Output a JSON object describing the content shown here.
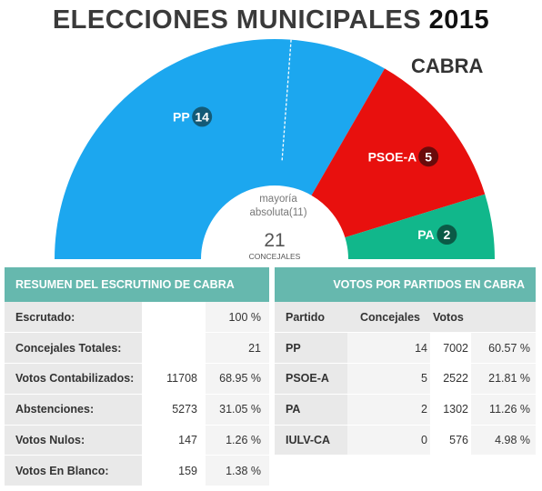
{
  "header": {
    "title": "ELECCIONES MUNICIPALES",
    "year": "2015",
    "municipality": "CABRA"
  },
  "chart_data": {
    "type": "hemicycle",
    "total_seats": 21,
    "total_label": "CONCEJALES",
    "majority_label": "mayoría absoluta(11)",
    "majority_seats": 11,
    "series": [
      {
        "name": "PP",
        "seats": 14,
        "color": "#1ca7ef",
        "badge_color": "#135a77"
      },
      {
        "name": "PSOE-A",
        "seats": 5,
        "color": "#e8100e",
        "badge_color": "#6a0b0b"
      },
      {
        "name": "PA",
        "seats": 2,
        "color": "#11b78b",
        "badge_color": "#0b5a46"
      }
    ]
  },
  "summary": {
    "title": "RESUMEN DEL ESCRUTINIO DE CABRA",
    "rows": [
      {
        "label": "Escrutado:",
        "value": "",
        "pct": "100 %"
      },
      {
        "label": "Concejales Totales:",
        "value": "",
        "pct": "21"
      },
      {
        "label": "Votos Contabilizados:",
        "value": "11708",
        "pct": "68.95 %"
      },
      {
        "label": "Abstenciones:",
        "value": "5273",
        "pct": "31.05 %"
      },
      {
        "label": "Votos Nulos:",
        "value": "147",
        "pct": "1.26 %"
      },
      {
        "label": "Votos En Blanco:",
        "value": "159",
        "pct": "1.38 %"
      }
    ]
  },
  "votes": {
    "title": "VOTOS POR PARTIDOS EN CABRA",
    "headers": {
      "party": "Partido",
      "seats": "Concejales",
      "votes": "Votos"
    },
    "rows": [
      {
        "party": "PP",
        "seats": "14",
        "votes": "7002",
        "pct": "60.57 %"
      },
      {
        "party": "PSOE-A",
        "seats": "5",
        "votes": "2522",
        "pct": "21.81 %"
      },
      {
        "party": "PA",
        "seats": "2",
        "votes": "1302",
        "pct": "11.26 %"
      },
      {
        "party": "IULV-CA",
        "seats": "0",
        "votes": "576",
        "pct": "4.98 %"
      }
    ]
  }
}
